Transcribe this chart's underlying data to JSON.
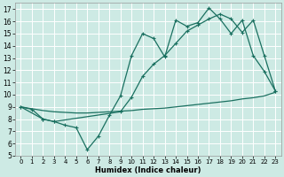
{
  "bg_color": "#cdeae4",
  "line_color": "#1a7060",
  "grid_color": "#b8ddd8",
  "xlabel": "Humidex (Indice chaleur)",
  "ylim": [
    5,
    17.5
  ],
  "xlim": [
    -0.5,
    23.5
  ],
  "yticks": [
    5,
    6,
    7,
    8,
    9,
    10,
    11,
    12,
    13,
    14,
    15,
    16,
    17
  ],
  "xticks": [
    0,
    1,
    2,
    3,
    4,
    5,
    6,
    7,
    8,
    9,
    10,
    11,
    12,
    13,
    14,
    15,
    16,
    17,
    18,
    19,
    20,
    21,
    22,
    23
  ],
  "line1_x": [
    0,
    1,
    2,
    3,
    4,
    5,
    6,
    7,
    8,
    9,
    10,
    11,
    12,
    13,
    14,
    15,
    16,
    17,
    18,
    19,
    20,
    21,
    22,
    23
  ],
  "line1_y": [
    9,
    8.8,
    8.0,
    7.8,
    7.5,
    7.3,
    5.5,
    6.6,
    8.3,
    9.9,
    13.2,
    15.0,
    14.6,
    13.1,
    16.1,
    15.6,
    15.9,
    17.1,
    16.2,
    15.0,
    16.1,
    13.2,
    11.9,
    10.3
  ],
  "line2_x": [
    0,
    2,
    3,
    9,
    10,
    11,
    12,
    13,
    14,
    15,
    16,
    17,
    18,
    19,
    20,
    21,
    22,
    23
  ],
  "line2_y": [
    9,
    8.0,
    7.8,
    8.6,
    9.8,
    11.5,
    12.5,
    13.2,
    14.2,
    15.2,
    15.7,
    16.2,
    16.6,
    16.2,
    15.1,
    16.1,
    13.2,
    10.3
  ],
  "line3_x": [
    0,
    1,
    2,
    3,
    4,
    5,
    6,
    7,
    8,
    9,
    10,
    11,
    12,
    13,
    14,
    15,
    16,
    17,
    18,
    19,
    20,
    21,
    22,
    23
  ],
  "line3_y": [
    9,
    8.85,
    8.7,
    8.6,
    8.55,
    8.5,
    8.5,
    8.55,
    8.6,
    8.65,
    8.7,
    8.8,
    8.85,
    8.9,
    9.0,
    9.1,
    9.2,
    9.3,
    9.4,
    9.5,
    9.65,
    9.75,
    9.9,
    10.2
  ]
}
